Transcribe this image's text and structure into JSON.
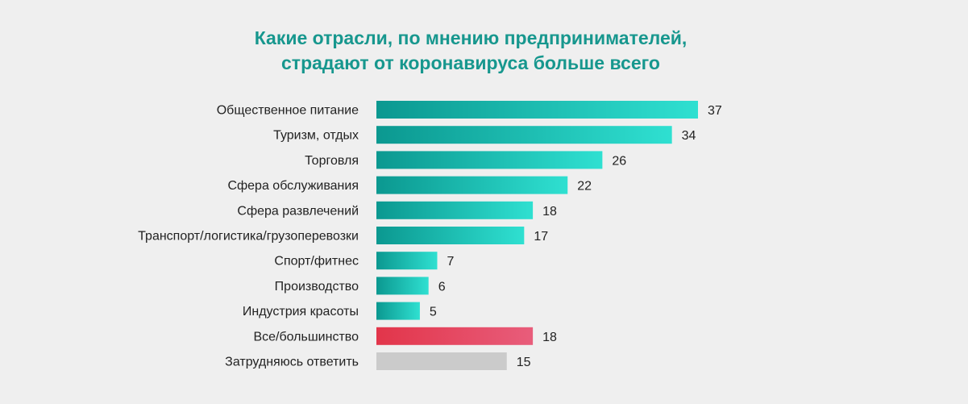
{
  "chart_data": {
    "type": "bar",
    "orientation": "horizontal",
    "title": [
      "Какие отрасли, по мнению предпринимателей,",
      "страдают от коронавируса больше всего"
    ],
    "categories": [
      "Общественное питание",
      "Туризм, отдых",
      "Торговля",
      "Сфера обслуживания",
      "Сфера развлечений",
      "Транспорт/логистика/грузоперевозки",
      "Спорт/фитнес",
      "Производство",
      "Индустрия красоты",
      "Все/большинство",
      "Затрудняюсь ответить"
    ],
    "values": [
      37,
      34,
      26,
      22,
      18,
      17,
      7,
      6,
      5,
      18,
      15
    ],
    "bar_style": [
      "teal",
      "teal",
      "teal",
      "teal",
      "teal",
      "teal",
      "teal",
      "teal",
      "teal",
      "red",
      "gray"
    ],
    "xlim": [
      0,
      37
    ],
    "grid": false,
    "legend": "none",
    "xlabel": "",
    "ylabel": ""
  },
  "palette": {
    "title": "#17978e",
    "teal_start": "#0b9890",
    "teal_end": "#2fe0d1",
    "red_start": "#e2354a",
    "red_end": "#e85d7b",
    "gray": "#cbcbcb",
    "text": "#222222"
  }
}
